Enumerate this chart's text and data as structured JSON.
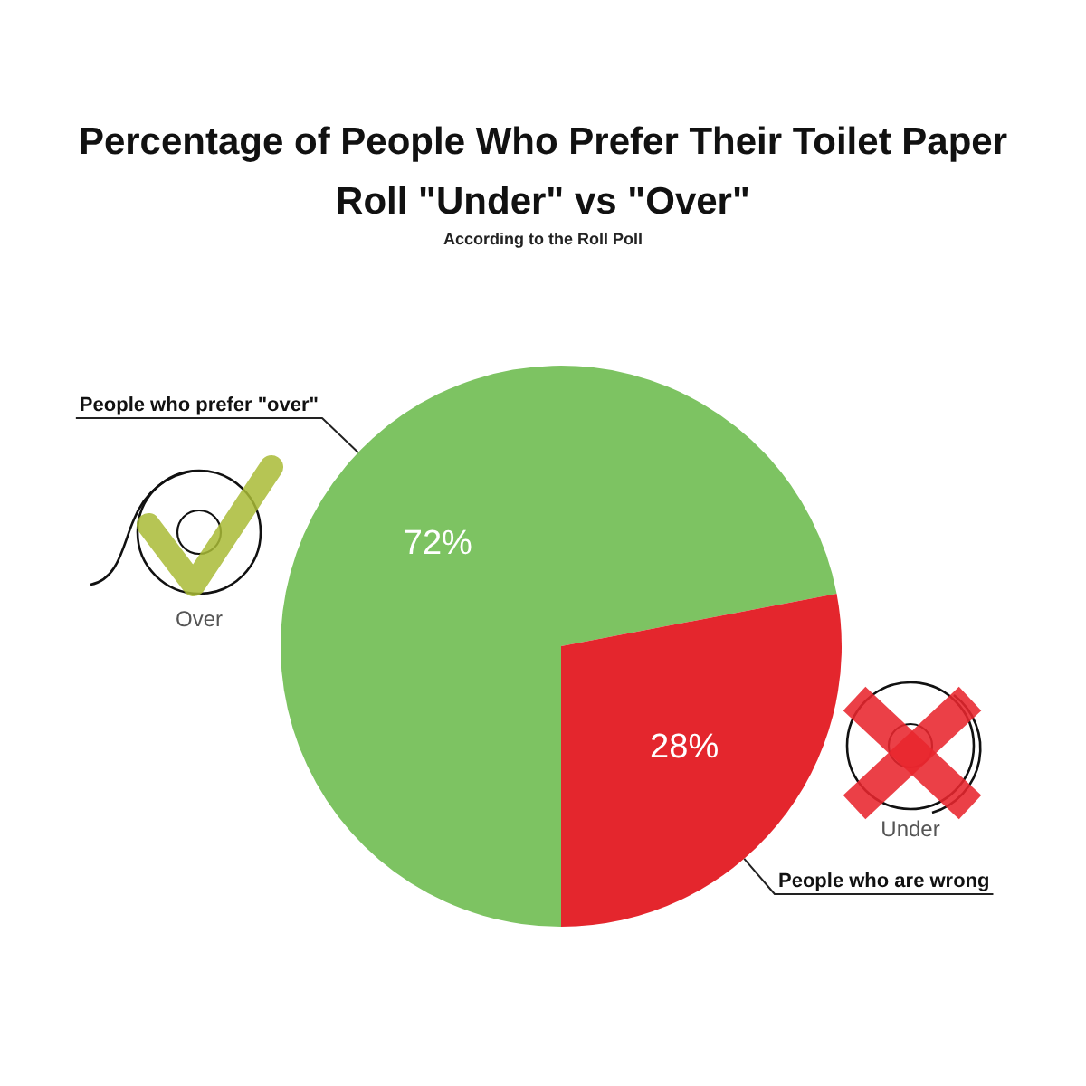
{
  "chart_data": {
    "type": "pie",
    "title": "Percentage of People Who Prefer Their Toilet Paper Roll \"Under\" vs \"Over\"",
    "subtitle": "According to the Roll Poll",
    "categories": [
      "People who prefer \"over\"",
      "People who are wrong"
    ],
    "values": [
      72,
      28
    ],
    "colors": [
      "#7dc362",
      "#e4262d"
    ],
    "value_labels": [
      "72%",
      "28%"
    ],
    "annotations": [
      "Over",
      "Under"
    ]
  }
}
